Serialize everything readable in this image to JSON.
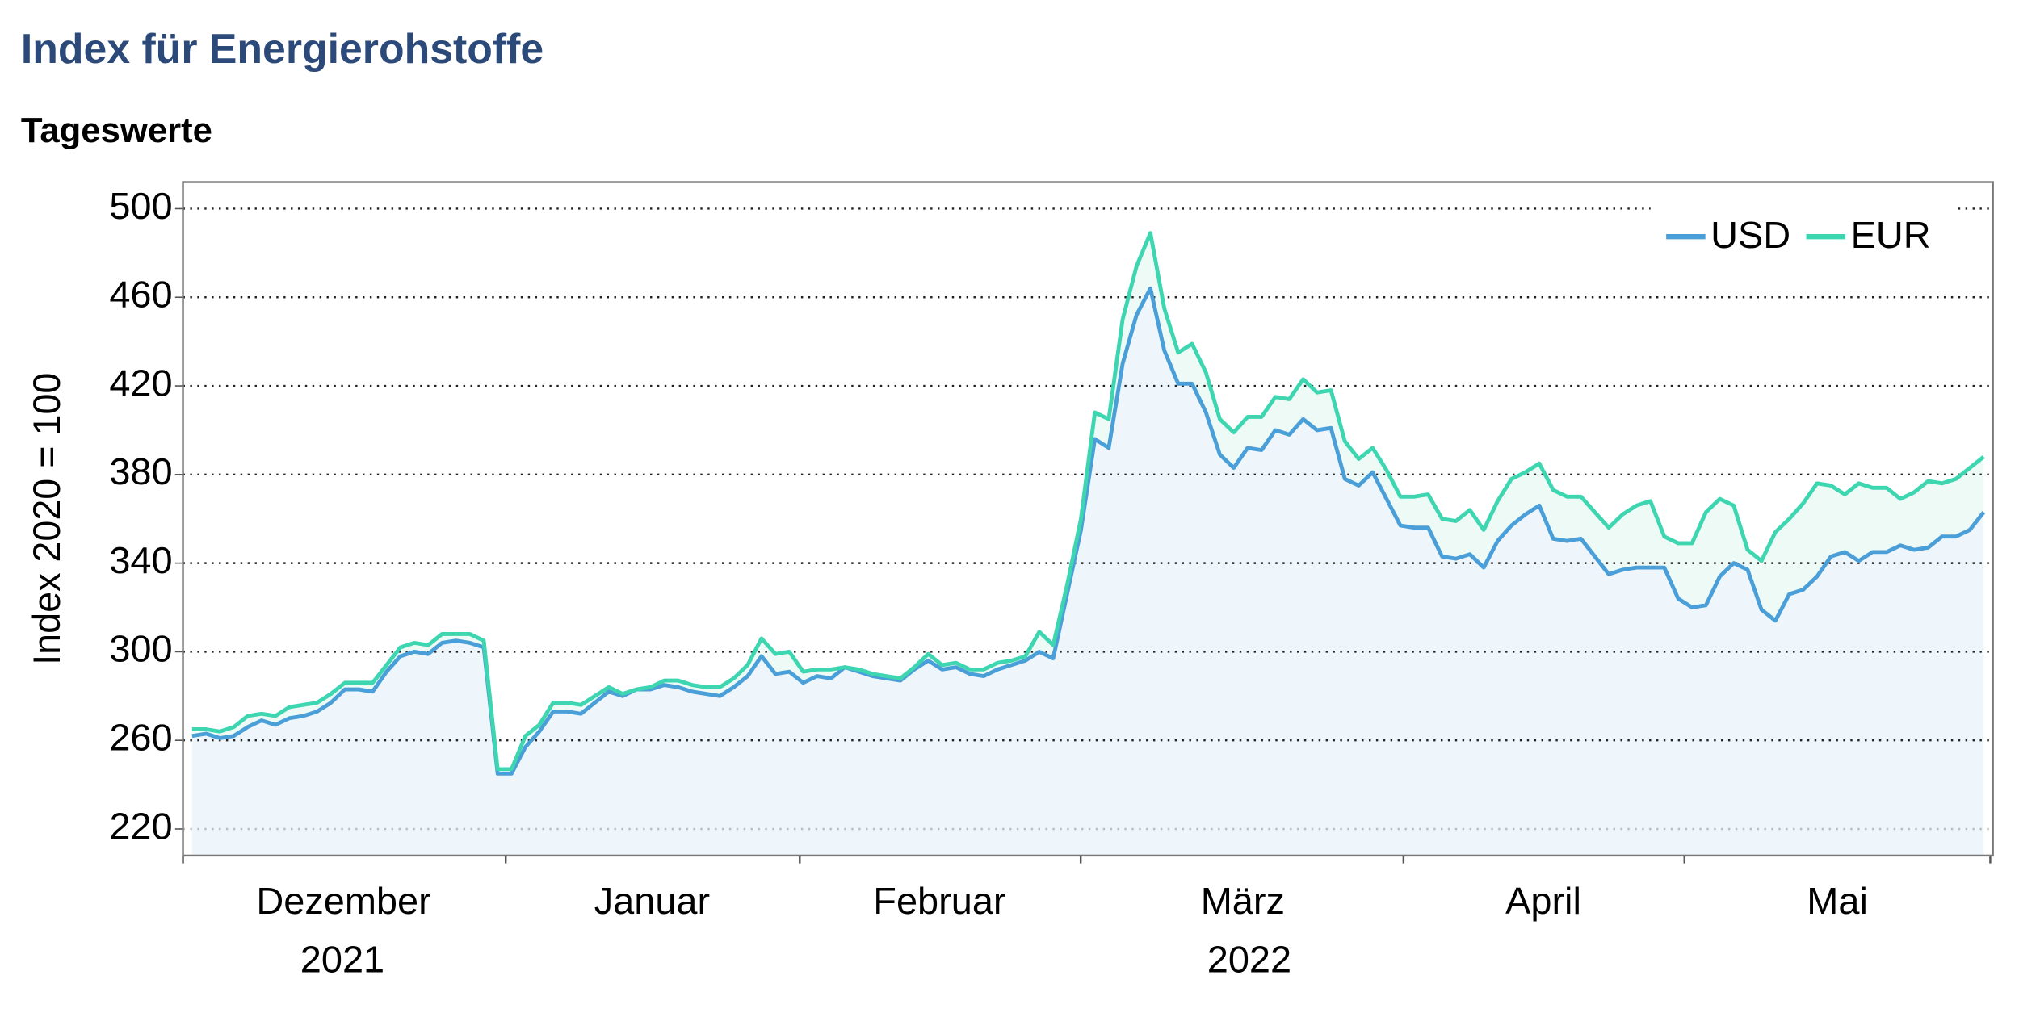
{
  "chart_data": {
    "type": "line",
    "title": "Index für Energierohstoffe",
    "subtitle": "Tageswerte",
    "y_label": "Index 2020 = 100",
    "month_labels": [
      "Dezember",
      "Januar",
      "Februar",
      "März",
      "April",
      "Mai"
    ],
    "year_labels": [
      "2021",
      "2022"
    ],
    "ylim": [
      208,
      512
    ],
    "yticks": [
      220,
      260,
      300,
      340,
      380,
      420,
      460,
      500
    ],
    "grid": true,
    "legend": "upper right",
    "series": [
      {
        "name": "USD",
        "color": "#4a9fd8",
        "values": [
          262,
          263,
          261,
          262,
          266,
          269,
          267,
          270,
          271,
          273,
          277,
          283,
          283,
          282,
          291,
          298,
          300,
          299,
          304,
          305,
          304,
          302,
          245,
          245,
          257,
          264,
          273,
          273,
          272,
          277,
          282,
          280,
          283,
          283,
          285,
          284,
          282,
          281,
          280,
          284,
          289,
          298,
          290,
          291,
          286,
          289,
          288,
          293,
          291,
          289,
          288,
          287,
          292,
          296,
          292,
          293,
          290,
          289,
          292,
          294,
          296,
          300,
          297,
          326,
          355,
          396,
          392,
          430,
          452,
          464,
          436,
          421,
          421,
          408,
          389,
          383,
          392,
          391,
          400,
          398,
          405,
          400,
          401,
          378,
          375,
          381,
          369,
          357,
          356,
          356,
          343,
          342,
          344,
          338,
          350,
          357,
          362,
          366,
          351,
          350,
          351,
          343,
          335,
          337,
          338,
          338,
          338,
          324,
          320,
          321,
          334,
          340,
          337,
          319,
          314,
          326,
          328,
          334,
          343,
          345,
          341,
          345,
          345,
          348,
          346,
          347,
          352,
          352,
          355,
          363
        ]
      },
      {
        "name": "EUR",
        "color": "#3dd6b0",
        "values": [
          265,
          265,
          264,
          266,
          271,
          272,
          271,
          275,
          276,
          277,
          281,
          286,
          286,
          286,
          294,
          302,
          304,
          303,
          308,
          308,
          308,
          305,
          247,
          247,
          262,
          267,
          277,
          277,
          276,
          280,
          284,
          281,
          283,
          284,
          287,
          287,
          285,
          284,
          284,
          288,
          294,
          306,
          299,
          300,
          291,
          292,
          292,
          293,
          292,
          290,
          289,
          288,
          293,
          299,
          294,
          295,
          292,
          292,
          295,
          296,
          298,
          309,
          303,
          330,
          360,
          408,
          405,
          450,
          474,
          489,
          455,
          435,
          439,
          426,
          405,
          399,
          406,
          406,
          415,
          414,
          423,
          417,
          418,
          395,
          387,
          392,
          382,
          370,
          370,
          371,
          360,
          359,
          364,
          355,
          368,
          378,
          381,
          385,
          373,
          370,
          370,
          363,
          356,
          362,
          366,
          368,
          352,
          349,
          349,
          363,
          369,
          366,
          346,
          341,
          354,
          360,
          367,
          376,
          375,
          371,
          376,
          374,
          374,
          369,
          372,
          377,
          376,
          378,
          383,
          388
        ]
      }
    ]
  }
}
